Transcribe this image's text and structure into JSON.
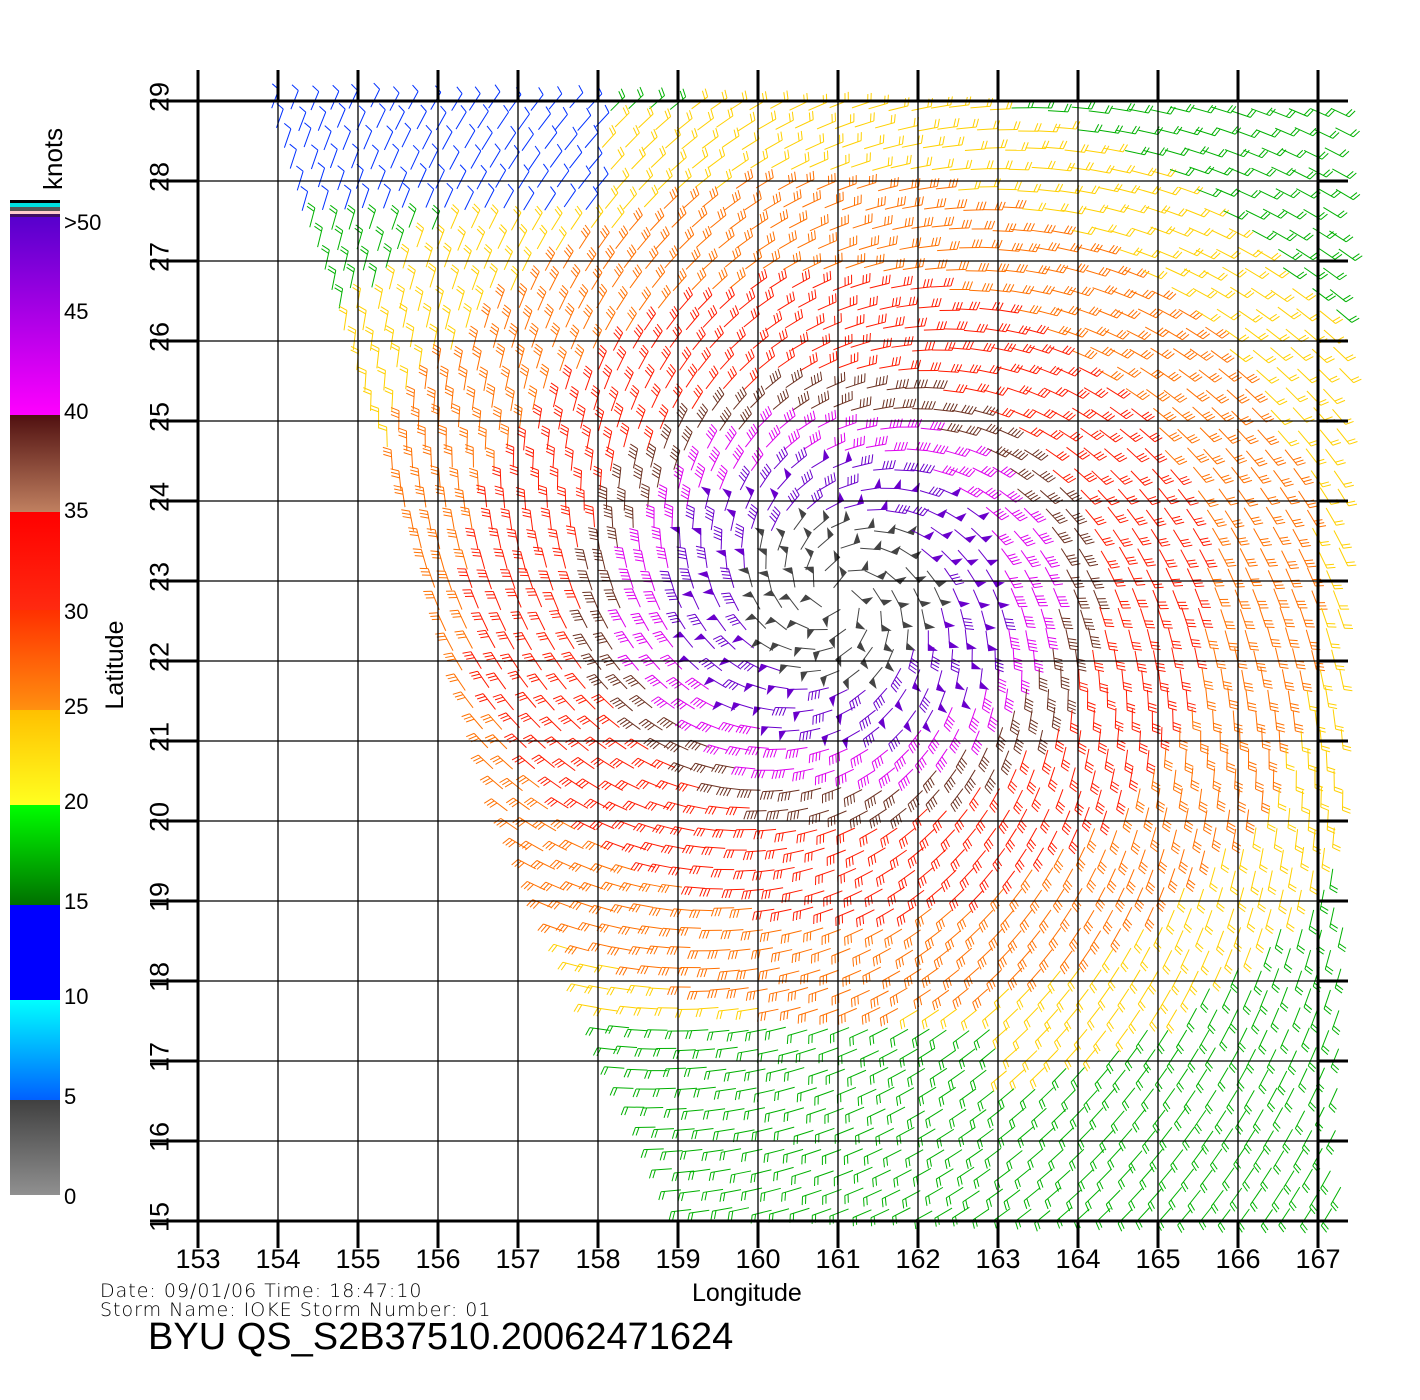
{
  "chart_data": {
    "type": "wind-barb-map",
    "title": "BYU QS_S2B37510.20062471624",
    "xlabel": "Longitude",
    "ylabel": "Latitude",
    "xlim": [
      153,
      167
    ],
    "ylim": [
      15,
      29
    ],
    "x_ticks": [
      "153",
      "154",
      "155",
      "156",
      "157",
      "158",
      "159",
      "160",
      "161",
      "162",
      "163",
      "164",
      "165",
      "166",
      "167"
    ],
    "y_ticks": [
      "15",
      "16",
      "17",
      "18",
      "19",
      "20",
      "21",
      "22",
      "23",
      "24",
      "25",
      "26",
      "27",
      "28",
      "29"
    ],
    "grid": true,
    "storm_center": [
      161.0,
      22.8
    ],
    "colorbar": {
      "label": "knots",
      "ticks": [
        "0",
        "5",
        "10",
        "15",
        "20",
        "25",
        "30",
        "35",
        "40",
        "45",
        ">50"
      ],
      "colors": [
        "#808080",
        "#00e5ff",
        "#0000ff",
        "#00aa00",
        "#ffe000",
        "#ff8000",
        "#ff2000",
        "#6b2a18",
        "#ff00ff",
        "#5500cc"
      ]
    }
  },
  "info": {
    "date_line": "Date: 09/01/06   Time: 18:47:10",
    "storm_line": "Storm  Name: IOKE   Storm  Number: 01"
  }
}
